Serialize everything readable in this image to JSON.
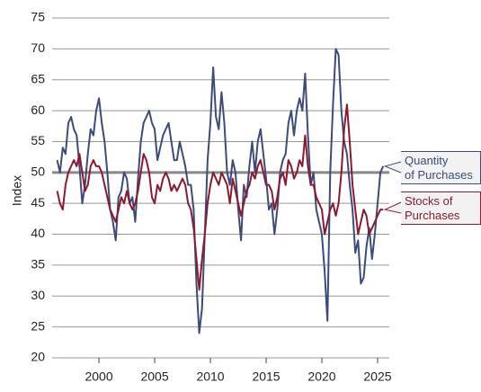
{
  "chart_data": {
    "type": "line",
    "y_label": "Index",
    "xlim": [
      1995.8,
      2026.05
    ],
    "xticks": [
      2000,
      2005,
      2010,
      2015,
      2020,
      2025
    ],
    "ylim": [
      20,
      75
    ],
    "yticks": [
      20,
      25,
      30,
      35,
      40,
      45,
      50,
      55,
      60,
      65,
      70,
      75
    ],
    "grid": true,
    "reference_line": 50,
    "x": [
      1996.25,
      1996.5,
      1996.75,
      1997,
      1997.25,
      1997.5,
      1997.75,
      1998,
      1998.25,
      1998.5,
      1998.75,
      1999,
      1999.25,
      1999.5,
      1999.75,
      2000,
      2000.25,
      2000.5,
      2000.75,
      2001,
      2001.25,
      2001.5,
      2001.75,
      2002,
      2002.25,
      2002.5,
      2002.75,
      2003,
      2003.25,
      2003.5,
      2003.75,
      2004,
      2004.25,
      2004.5,
      2004.75,
      2005,
      2005.25,
      2005.5,
      2005.75,
      2006,
      2006.25,
      2006.5,
      2006.75,
      2007,
      2007.25,
      2007.5,
      2007.75,
      2008,
      2008.25,
      2008.5,
      2008.75,
      2009,
      2009.25,
      2009.5,
      2009.75,
      2010,
      2010.25,
      2010.5,
      2010.75,
      2011,
      2011.25,
      2011.5,
      2011.75,
      2012,
      2012.25,
      2012.5,
      2012.75,
      2013,
      2013.25,
      2013.5,
      2013.75,
      2014,
      2014.25,
      2014.5,
      2014.75,
      2015,
      2015.25,
      2015.5,
      2015.75,
      2016,
      2016.25,
      2016.5,
      2016.75,
      2017,
      2017.25,
      2017.5,
      2017.75,
      2018,
      2018.25,
      2018.5,
      2018.75,
      2019,
      2019.25,
      2019.5,
      2019.75,
      2020,
      2020.25,
      2020.5,
      2020.75,
      2021,
      2021.25,
      2021.5,
      2021.75,
      2022,
      2022.25,
      2022.5,
      2022.75,
      2023,
      2023.25,
      2023.5,
      2023.75,
      2024,
      2024.25,
      2024.5,
      2024.75,
      2025,
      2025.25,
      2025.5
    ],
    "series": [
      {
        "name": "Quantity\nof Purchases",
        "color": "#3d4a7a",
        "values": [
          52,
          50,
          54,
          53,
          58,
          59,
          57,
          56,
          51,
          45,
          48,
          53,
          57,
          56,
          60,
          62,
          58,
          55,
          50,
          44,
          42,
          39,
          46,
          47,
          50,
          49,
          45,
          46,
          42,
          49,
          55,
          58,
          59,
          60,
          58,
          57,
          52,
          54,
          56,
          57,
          58,
          55,
          52,
          52,
          55,
          53,
          51,
          48,
          48,
          44,
          32,
          24,
          28,
          40,
          52,
          58,
          67,
          59,
          57,
          63,
          58,
          50,
          48,
          52,
          50,
          44,
          39,
          48,
          46,
          51,
          55,
          50,
          55,
          57,
          53,
          49,
          44,
          45,
          40,
          44,
          50,
          52,
          53,
          58,
          60,
          56,
          60,
          62,
          60,
          66,
          56,
          48,
          50,
          44,
          42,
          40,
          34,
          26,
          50,
          61,
          70,
          69,
          60,
          55,
          53,
          48,
          44,
          37,
          39,
          32,
          33,
          38,
          41,
          36,
          40,
          45,
          50,
          51
        ]
      },
      {
        "name": "Stocks of\nPurchases",
        "color": "#8b1a2e",
        "values": [
          47,
          45,
          44,
          48,
          50,
          51,
          52,
          51,
          53,
          50,
          47,
          48,
          51,
          52,
          51,
          51,
          50,
          48,
          46,
          44,
          43,
          42,
          44,
          46,
          45,
          47,
          45,
          44,
          45,
          47,
          50,
          53,
          52,
          50,
          46,
          45,
          48,
          47,
          49,
          50,
          49,
          47,
          48,
          47,
          48,
          49,
          48,
          45,
          44,
          41,
          36,
          31,
          36,
          40,
          45,
          48,
          50,
          49,
          48,
          50,
          49,
          48,
          45,
          49,
          47,
          45,
          43,
          45,
          47,
          48,
          50,
          49,
          51,
          52,
          50,
          48,
          48,
          47,
          44,
          46,
          49,
          50,
          48,
          52,
          51,
          49,
          50,
          52,
          51,
          56,
          51,
          48,
          48,
          46,
          45,
          44,
          40,
          42,
          44,
          45,
          43,
          45,
          50,
          57,
          61,
          55,
          48,
          44,
          40,
          42,
          44,
          43,
          40,
          41,
          42,
          43,
          44,
          44
        ]
      }
    ]
  }
}
